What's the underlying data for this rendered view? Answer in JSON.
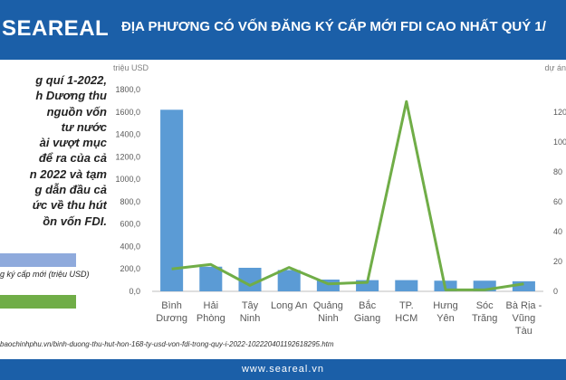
{
  "header": {
    "logo": "SEAREAL",
    "title": "ĐỊA PHƯƠNG CÓ VỐN ĐĂNG KÝ CẤP MỚI FDI CAO NHẤT QUÝ 1/"
  },
  "side_text": {
    "lines": [
      "g quí 1-2022,",
      "h Dương thu",
      "nguồn vốn",
      "tư nước",
      "ài vượt mục",
      "để ra của cả",
      "n 2022 và tạm",
      "g dẫn đầu cả",
      "ức về thu hút",
      "ồn vốn FDI."
    ]
  },
  "legend": {
    "bar_label": "g ký cấp mới (triệu USD)",
    "line_label": "",
    "bar_color": "#8faadc",
    "line_color": "#70ad47"
  },
  "source": "baochinhphu.vn/binh-duong-thu-hut-hon-168-ty-usd-von-fdi-trong-quy-i-2022-102220401192618295.htm",
  "footer": "www.seareal.vn",
  "chart_data": {
    "type": "bar",
    "ylabel_left": "triệu USD",
    "ylabel_right": "dự án",
    "categories": [
      [
        "Bình",
        "Dương"
      ],
      [
        "Hải",
        "Phòng"
      ],
      [
        "Tây",
        "Ninh"
      ],
      [
        "Long An"
      ],
      [
        "Quảng",
        "Ninh"
      ],
      [
        "Bắc",
        "Giang"
      ],
      [
        "TP.",
        "HCM"
      ],
      [
        "Hưng",
        "Yên"
      ],
      [
        "Sóc",
        "Trăng"
      ],
      [
        "Bà Rịa -",
        "Vũng",
        "Tàu"
      ]
    ],
    "yticks_left": [
      "0,0",
      "200,0",
      "400,0",
      "600,0",
      "800,0",
      "1000,0",
      "1200,0",
      "1400,0",
      "1600,0",
      "1800,0"
    ],
    "yticks_right": [
      "0",
      "20",
      "40",
      "60",
      "80",
      "100",
      "120"
    ],
    "ylim_left": [
      0,
      1800
    ],
    "ylim_right": [
      0,
      135
    ],
    "series": [
      {
        "type": "bar",
        "axis": "left",
        "color": "#5b9bd5",
        "values": [
          1620,
          220,
          210,
          190,
          105,
          100,
          100,
          95,
          95,
          90
        ]
      },
      {
        "type": "line",
        "axis": "right",
        "color": "#70ad47",
        "values": [
          15,
          18,
          4,
          16,
          5,
          6,
          127,
          1,
          1,
          5
        ]
      }
    ]
  }
}
